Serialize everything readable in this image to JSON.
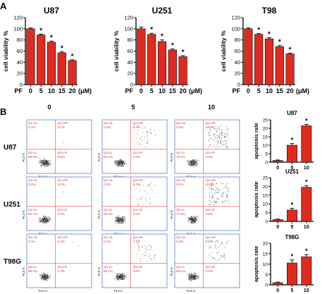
{
  "panels": {
    "a": "A",
    "b": "B"
  },
  "colors": {
    "bar": "#e02a1f",
    "axis": "#000000",
    "dotplot_border": "#5a7ec8",
    "quad_line": "#e04040",
    "quad_text": "#d04040",
    "dots": "#3a3a3a"
  },
  "chart_data": [
    {
      "type": "bar",
      "title": "U87",
      "ylabel": "cell viability %",
      "x_prefix": "PF",
      "x_unit": "(μM)",
      "categories": [
        "0",
        "5",
        "10",
        "15",
        "20"
      ],
      "values": [
        100,
        89,
        76,
        57,
        43
      ],
      "errors": [
        1.5,
        1.5,
        2,
        2,
        1.5
      ],
      "significance": [
        "",
        "*",
        "*",
        "*",
        "*"
      ],
      "ylim": [
        0,
        120
      ],
      "yticks": [
        "0",
        "20",
        "40",
        "60",
        "80",
        "100",
        "120"
      ]
    },
    {
      "type": "bar",
      "title": "U251",
      "ylabel": "cell viability %",
      "x_prefix": "PF",
      "x_unit": "(μM)",
      "categories": [
        "0",
        "5",
        "10",
        "15",
        "20"
      ],
      "values": [
        100,
        90,
        77,
        62,
        50
      ],
      "errors": [
        3,
        2,
        3,
        2,
        2
      ],
      "significance": [
        "",
        "*",
        "*",
        "*",
        "*"
      ],
      "ylim": [
        0,
        120
      ],
      "yticks": [
        "0",
        "20",
        "40",
        "60",
        "80",
        "100",
        "120"
      ]
    },
    {
      "type": "bar",
      "title": "T98",
      "ylabel": "cell viability %",
      "x_prefix": "PF",
      "x_unit": "(μM)",
      "categories": [
        "0",
        "5",
        "10",
        "15",
        "20"
      ],
      "values": [
        100,
        90,
        82,
        68,
        55
      ],
      "errors": [
        1.5,
        1.5,
        2,
        2,
        1.5
      ],
      "significance": [
        "",
        "*",
        "*",
        "*",
        "*"
      ],
      "ylim": [
        0,
        120
      ],
      "yticks": [
        "0",
        "20",
        "40",
        "60",
        "80",
        "100",
        "120"
      ]
    },
    {
      "type": "bar",
      "title": "U87",
      "ylabel": "apoptosis rate",
      "categories": [
        "0",
        "5",
        "10"
      ],
      "values": [
        1,
        10,
        21.5
      ],
      "errors": [
        0.3,
        1,
        0.8
      ],
      "significance": [
        "",
        "*",
        "*"
      ],
      "ylim": [
        0,
        25
      ],
      "yticks": [
        "0",
        "5",
        "10",
        "15",
        "20",
        "25"
      ]
    },
    {
      "type": "bar",
      "title": "U251",
      "ylabel": "apoptosis rate",
      "categories": [
        "0",
        "5",
        "10"
      ],
      "values": [
        1,
        6.5,
        19.5
      ],
      "errors": [
        0.3,
        1,
        1
      ],
      "significance": [
        "",
        "*",
        "*"
      ],
      "ylim": [
        0,
        25
      ],
      "yticks": [
        "0",
        "5",
        "10",
        "15",
        "20",
        "25"
      ]
    },
    {
      "type": "bar",
      "title": "T98G",
      "ylabel": "apoptosis rate",
      "categories": [
        "0",
        "5",
        "10"
      ],
      "values": [
        1,
        10.5,
        13.5
      ],
      "errors": [
        0.3,
        1.5,
        1
      ],
      "significance": [
        "",
        "*",
        "*"
      ],
      "ylim": [
        0,
        20
      ],
      "yticks": [
        "0",
        "5",
        "10",
        "15",
        "20"
      ]
    }
  ],
  "flow": {
    "columns": [
      "0",
      "5",
      "10"
    ],
    "rows": [
      "U87",
      "U251",
      "T98G"
    ],
    "x_axis_label": "FL1-A",
    "y_axis_label": "FL2-A",
    "quadrant_names": {
      "ul": "Q1-UL",
      "ur": "Q1-UR",
      "ll": "Q1-LL",
      "lr": "Q1-LR"
    },
    "plots": [
      [
        {
          "ul": "0.1%",
          "ur": "0.1%",
          "ll": "99.0%",
          "lr": "0.8%"
        },
        {
          "ul": "0.2%",
          "ur": "6.4%",
          "ll": "92.1%",
          "lr": "1.3%"
        },
        {
          "ul": "0.3%",
          "ur": "19.3%",
          "ll": "78.1%",
          "lr": "2.3%"
        }
      ],
      [
        {
          "ul": "0.2%",
          "ur": "0.2%",
          "ll": "98.7%",
          "lr": "0.9%"
        },
        {
          "ul": "0.2%",
          "ur": "5.2%",
          "ll": "92.2%",
          "lr": "2.4%"
        },
        {
          "ul": "0.3%",
          "ur": "18.3%",
          "ll": "77.6%",
          "lr": "3.8%"
        }
      ],
      [
        {
          "ul": "0.1%",
          "ur": "0.3%",
          "ll": "98.3%",
          "lr": "1.3%"
        },
        {
          "ul": "0.2%",
          "ur": "7.1%",
          "ll": "89.1%",
          "lr": "3.6%"
        },
        {
          "ul": "0.2%",
          "ur": "9.2%",
          "ll": "88.1%",
          "lr": "2.5%"
        }
      ]
    ]
  }
}
